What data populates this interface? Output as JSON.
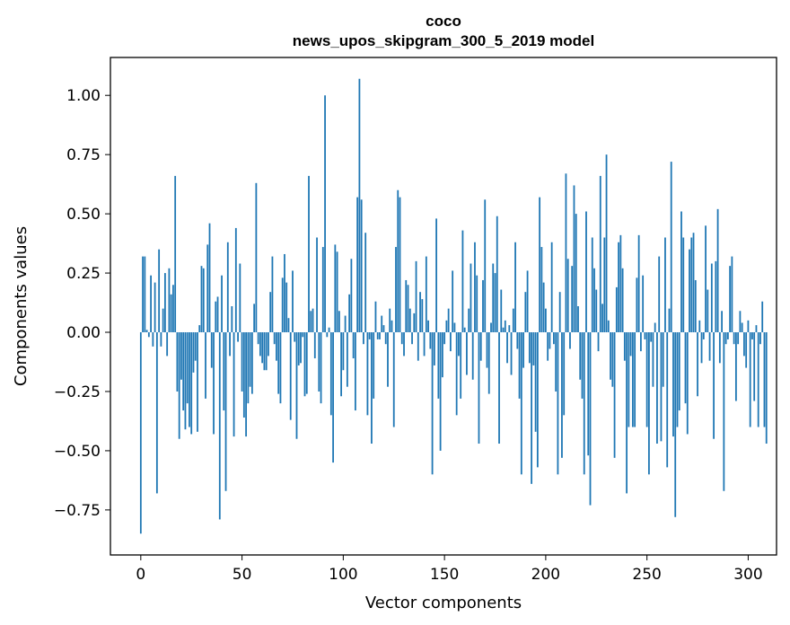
{
  "chart_data": {
    "type": "bar",
    "title_line1": "coco",
    "title_line2": "news_upos_skipgram_300_5_2019 model",
    "xlabel": "Vector components",
    "ylabel": "Components values",
    "xlim": [
      -15,
      314
    ],
    "ylim": [
      -0.94,
      1.16
    ],
    "xticks": [
      0,
      50,
      100,
      150,
      200,
      250,
      300
    ],
    "xtick_labels": [
      "0",
      "50",
      "100",
      "150",
      "200",
      "250",
      "300"
    ],
    "yticks": [
      -0.75,
      -0.5,
      -0.25,
      0.0,
      0.25,
      0.5,
      0.75,
      1.0
    ],
    "ytick_labels": [
      "−0.75",
      "−0.50",
      "−0.25",
      "0.00",
      "0.25",
      "0.50",
      "0.75",
      "1.00"
    ],
    "color": "#1f77b4",
    "values": [
      -0.85,
      0.32,
      0.32,
      0.01,
      -0.02,
      0.24,
      -0.06,
      0.21,
      -0.68,
      0.35,
      -0.06,
      0.1,
      0.25,
      -0.1,
      0.27,
      0.16,
      0.2,
      0.66,
      -0.25,
      -0.45,
      -0.2,
      -0.33,
      -0.41,
      -0.3,
      -0.4,
      -0.43,
      -0.17,
      -0.12,
      -0.42,
      0.03,
      0.28,
      0.27,
      -0.28,
      0.37,
      0.46,
      -0.15,
      -0.43,
      0.13,
      0.15,
      -0.79,
      0.24,
      -0.33,
      -0.67,
      0.38,
      -0.1,
      0.11,
      -0.44,
      0.44,
      -0.04,
      0.29,
      -0.25,
      -0.36,
      -0.44,
      -0.3,
      -0.23,
      -0.26,
      0.12,
      0.63,
      -0.05,
      -0.1,
      -0.13,
      -0.16,
      -0.16,
      -0.1,
      0.17,
      0.32,
      -0.05,
      -0.12,
      -0.26,
      -0.3,
      0.23,
      0.33,
      0.21,
      0.06,
      -0.37,
      0.26,
      -0.04,
      -0.45,
      -0.14,
      -0.13,
      -0.02,
      -0.27,
      -0.26,
      0.66,
      0.09,
      0.1,
      -0.11,
      0.4,
      -0.25,
      -0.3,
      0.36,
      1.0,
      -0.02,
      0.02,
      -0.35,
      -0.55,
      0.37,
      0.34,
      0.09,
      -0.27,
      -0.16,
      0.07,
      -0.23,
      0.16,
      0.31,
      -0.11,
      -0.33,
      0.57,
      1.07,
      0.56,
      -0.05,
      0.42,
      -0.35,
      -0.03,
      -0.47,
      -0.28,
      0.13,
      -0.03,
      -0.03,
      0.07,
      0.03,
      -0.05,
      -0.23,
      0.1,
      0.05,
      -0.4,
      0.36,
      0.6,
      0.57,
      -0.05,
      -0.1,
      0.22,
      0.2,
      0.1,
      -0.05,
      0.08,
      0.3,
      -0.12,
      0.17,
      0.14,
      -0.1,
      0.32,
      0.05,
      -0.07,
      -0.6,
      -0.14,
      0.48,
      -0.28,
      -0.5,
      -0.19,
      -0.05,
      0.05,
      0.1,
      -0.08,
      0.26,
      0.04,
      -0.35,
      -0.1,
      -0.28,
      0.43,
      0.02,
      -0.18,
      0.1,
      0.29,
      -0.2,
      0.38,
      0.24,
      -0.47,
      -0.12,
      0.22,
      0.56,
      -0.15,
      -0.26,
      0.04,
      0.29,
      0.25,
      0.49,
      -0.47,
      0.18,
      0.02,
      0.05,
      -0.13,
      0.03,
      -0.18,
      0.1,
      0.38,
      -0.07,
      -0.28,
      -0.6,
      -0.15,
      0.17,
      0.26,
      -0.13,
      -0.64,
      -0.14,
      -0.42,
      -0.57,
      0.57,
      0.36,
      0.21,
      0.1,
      -0.12,
      -0.07,
      0.38,
      -0.05,
      -0.25,
      -0.6,
      0.17,
      -0.53,
      -0.35,
      0.67,
      0.31,
      -0.07,
      0.28,
      0.62,
      0.5,
      0.11,
      -0.2,
      -0.28,
      -0.6,
      0.51,
      -0.52,
      -0.73,
      0.4,
      0.27,
      0.18,
      -0.08,
      0.66,
      0.12,
      0.4,
      0.75,
      0.05,
      -0.2,
      -0.23,
      -0.53,
      0.19,
      0.38,
      0.41,
      0.27,
      -0.12,
      -0.68,
      -0.4,
      -0.1,
      -0.4,
      -0.4,
      0.23,
      0.41,
      -0.08,
      0.24,
      -0.03,
      -0.4,
      -0.6,
      -0.04,
      -0.23,
      0.04,
      -0.47,
      0.32,
      -0.46,
      -0.23,
      0.4,
      -0.57,
      0.1,
      0.72,
      -0.44,
      -0.78,
      -0.4,
      -0.33,
      0.51,
      0.4,
      -0.3,
      -0.43,
      0.35,
      0.4,
      0.42,
      0.22,
      -0.27,
      0.05,
      -0.13,
      -0.03,
      0.45,
      0.18,
      -0.12,
      0.29,
      -0.45,
      0.3,
      0.52,
      -0.13,
      0.09,
      -0.67,
      -0.05,
      -0.03,
      0.28,
      0.32,
      -0.05,
      -0.29,
      -0.05,
      0.09,
      0.04,
      -0.1,
      -0.15,
      0.05,
      -0.4,
      -0.03,
      -0.29,
      0.03,
      -0.4,
      -0.05,
      0.13,
      -0.4,
      -0.47
    ]
  }
}
